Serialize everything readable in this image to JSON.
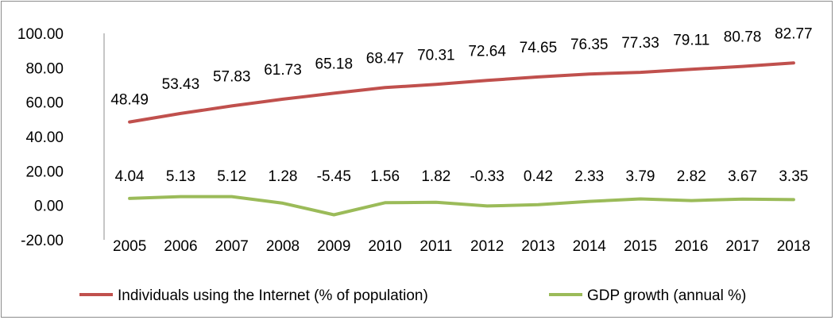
{
  "chart_data": {
    "type": "line",
    "categories": [
      "2005",
      "2006",
      "2007",
      "2008",
      "2009",
      "2010",
      "2011",
      "2012",
      "2013",
      "2014",
      "2015",
      "2016",
      "2017",
      "2018"
    ],
    "series": [
      {
        "name": "Individuals using the Internet (% of population)",
        "color": "#c0504d",
        "values": [
          48.49,
          53.43,
          57.83,
          61.73,
          65.18,
          68.47,
          70.31,
          72.64,
          74.65,
          76.35,
          77.33,
          79.11,
          80.78,
          82.77
        ],
        "labels": [
          "48.49",
          "53.43",
          "57.83",
          "61.73",
          "65.18",
          "68.47",
          "70.31",
          "72.64",
          "74.65",
          "76.35",
          "77.33",
          "79.11",
          "80.78",
          "82.77"
        ]
      },
      {
        "name": "GDP growth (annual %)",
        "color": "#9bbb59",
        "values": [
          4.04,
          5.13,
          5.12,
          1.28,
          -5.45,
          1.56,
          1.82,
          -0.33,
          0.42,
          2.33,
          3.79,
          2.82,
          3.67,
          3.35
        ],
        "labels": [
          "4.04",
          "5.13",
          "5.12",
          "1.28",
          "-5.45",
          "1.56",
          "1.82",
          "-0.33",
          "0.42",
          "2.33",
          "3.79",
          "2.82",
          "3.67",
          "3.35"
        ]
      }
    ],
    "yticks": [
      "100.00",
      "80.00",
      "60.00",
      "40.00",
      "20.00",
      "0.00",
      "-20.00"
    ],
    "ylim": [
      -20,
      100
    ],
    "title": "",
    "xlabel": "",
    "ylabel": "",
    "grid": false,
    "legend_position": "bottom"
  }
}
